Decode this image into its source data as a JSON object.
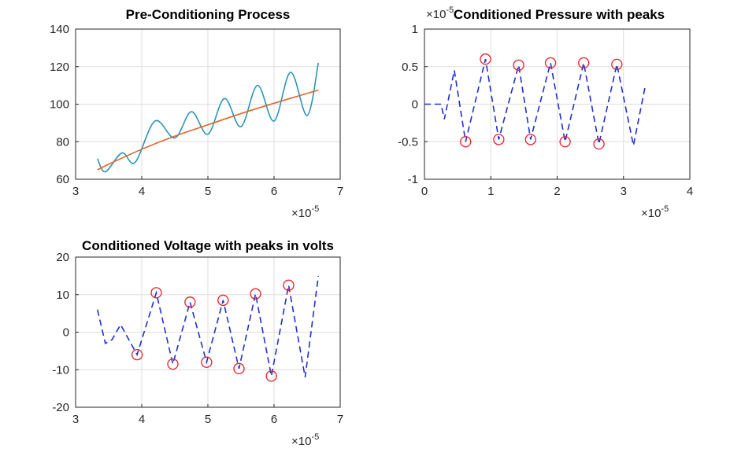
{
  "chart_data": [
    {
      "type": "line",
      "title": "Pre-Conditioning Process",
      "xlim": [
        3,
        7
      ],
      "xticks": [
        3,
        4,
        5,
        6,
        7
      ],
      "ylim": [
        60,
        140
      ],
      "yticks": [
        60,
        80,
        100,
        120,
        140
      ],
      "grid": true,
      "xexponent": {
        "base": "×10",
        "power": "-5"
      },
      "series": [
        {
          "color": "#2a95b8",
          "line_style": "solid",
          "x": [
            3.33,
            3.45,
            3.7,
            3.9,
            4.2,
            4.5,
            4.75,
            5.0,
            5.25,
            5.5,
            5.75,
            6.0,
            6.25,
            6.5,
            6.67
          ],
          "values": [
            71,
            64,
            74,
            69,
            91,
            82,
            96,
            84,
            103,
            88,
            110,
            91,
            117,
            94,
            122
          ]
        },
        {
          "color": "#e0642a",
          "line_style": "solid",
          "x": [
            3.33,
            3.5,
            4.0,
            4.5,
            5.0,
            5.5,
            6.0,
            6.67
          ],
          "values": [
            65,
            68,
            76,
            83,
            89,
            95,
            100.5,
            107.5
          ]
        }
      ]
    },
    {
      "type": "line",
      "title": "Conditioned Pressure with peaks",
      "xlim": [
        0,
        4
      ],
      "xticks": [
        0,
        1,
        2,
        3,
        4
      ],
      "ylim": [
        -1,
        1
      ],
      "yticks": [
        -1,
        -0.5,
        0,
        0.5,
        1
      ],
      "grid": true,
      "xexponent": {
        "base": "×10",
        "power": "-5"
      },
      "yexponent": {
        "base": "×10",
        "power": "-5"
      },
      "series": [
        {
          "color": "#1f2fd0",
          "line_style": "dashed",
          "x": [
            0,
            0.25,
            0.3,
            0.45,
            0.62,
            0.92,
            1.12,
            1.42,
            1.6,
            1.9,
            2.12,
            2.4,
            2.63,
            2.9,
            3.15,
            3.33
          ],
          "values": [
            0,
            0,
            -0.2,
            0.45,
            -0.5,
            0.6,
            -0.47,
            0.52,
            -0.47,
            0.55,
            -0.5,
            0.55,
            -0.53,
            0.53,
            -0.55,
            0.25
          ]
        },
        {
          "color": "#e8202a",
          "line_style": "none",
          "marker": "circle",
          "x": [
            0.62,
            0.92,
            1.12,
            1.42,
            1.6,
            1.9,
            2.12,
            2.4,
            2.63,
            2.9
          ],
          "values": [
            -0.5,
            0.6,
            -0.47,
            0.52,
            -0.47,
            0.55,
            -0.5,
            0.55,
            -0.53,
            0.53
          ]
        }
      ]
    },
    {
      "type": "line",
      "title": "Conditioned Voltage with peaks in volts",
      "xlim": [
        3,
        7
      ],
      "xticks": [
        3,
        4,
        5,
        6,
        7
      ],
      "ylim": [
        -20,
        20
      ],
      "yticks": [
        -20,
        -10,
        0,
        10,
        20
      ],
      "grid": true,
      "xexponent": {
        "base": "×10",
        "power": "-5"
      },
      "series": [
        {
          "color": "#1f2fd0",
          "line_style": "dashed",
          "x": [
            3.33,
            3.45,
            3.55,
            3.68,
            3.93,
            4.22,
            4.47,
            4.73,
            4.98,
            5.23,
            5.47,
            5.72,
            5.96,
            6.22,
            6.47,
            6.67
          ],
          "values": [
            6,
            -3,
            -2,
            2,
            -6,
            10.5,
            -8.5,
            8,
            -8,
            8.5,
            -9.7,
            10.2,
            -11.7,
            12.5,
            -12,
            15
          ]
        },
        {
          "color": "#e8202a",
          "line_style": "none",
          "marker": "circle",
          "x": [
            3.93,
            4.22,
            4.47,
            4.73,
            4.98,
            5.23,
            5.47,
            5.72,
            5.96,
            6.22
          ],
          "values": [
            -6,
            10.5,
            -8.5,
            8,
            -8,
            8.5,
            -9.7,
            10.2,
            -11.7,
            12.5
          ]
        }
      ]
    }
  ]
}
